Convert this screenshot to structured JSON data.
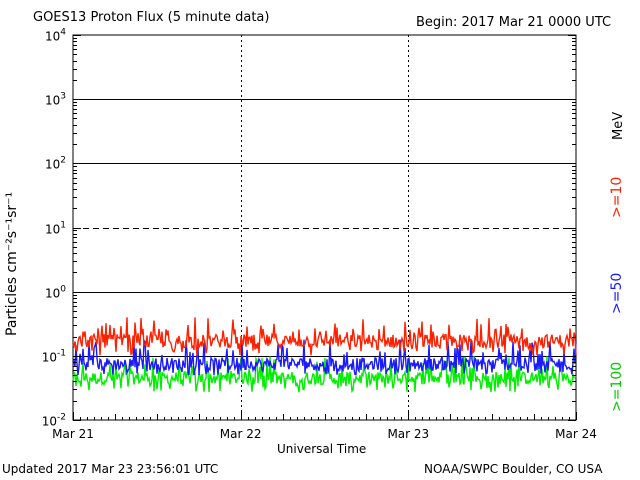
{
  "header": {
    "title": "GOES13 Proton Flux (5 minute data)",
    "begin": "Begin: 2017 Mar 21 0000 UTC"
  },
  "footer": {
    "updated": "Updated 2017 Mar 23 23:56:01 UTC",
    "source": "NOAA/SWPC Boulder, CO USA"
  },
  "chart_data": {
    "type": "line",
    "title": "GOES13 Proton Flux (5 minute data)",
    "xlabel": "Universal Time",
    "ylabel": "Particles cm⁻²s⁻¹sr⁻¹",
    "y_scale": "log",
    "ylim": [
      0.01,
      10000
    ],
    "y_ticks": [
      {
        "base": "10",
        "exp": "-2",
        "value": 0.01
      },
      {
        "base": "10",
        "exp": "-1",
        "value": 0.1
      },
      {
        "base": "10",
        "exp": "0",
        "value": 1
      },
      {
        "base": "10",
        "exp": "1",
        "value": 10
      },
      {
        "base": "10",
        "exp": "2",
        "value": 100
      },
      {
        "base": "10",
        "exp": "3",
        "value": 1000
      },
      {
        "base": "10",
        "exp": "4",
        "value": 10000
      }
    ],
    "x_ticks": [
      "Mar 21",
      "Mar 22",
      "Mar 23",
      "Mar 24"
    ],
    "xlim": [
      "2017-03-21 00:00",
      "2017-03-24 00:00"
    ],
    "threshold_line": 10,
    "grid": true,
    "legend_unit": "MeV",
    "legend_position": "right",
    "series": [
      {
        "name": ">=10",
        "color": "#ff2000",
        "typical": 0.17,
        "min": 0.1,
        "max": 0.4
      },
      {
        "name": ">=50",
        "color": "#1a1aff",
        "typical": 0.075,
        "min": 0.05,
        "max": 0.18
      },
      {
        "name": ">=100",
        "color": "#00ee00",
        "typical": 0.045,
        "min": 0.027,
        "max": 0.1
      }
    ]
  }
}
